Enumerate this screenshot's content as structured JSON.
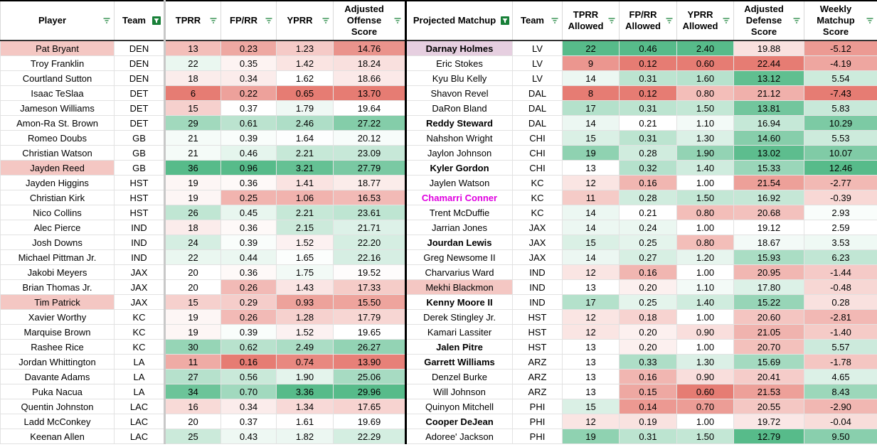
{
  "table": {
    "headers": [
      "Player",
      "Team",
      "TPRR",
      "FP/RR",
      "YPRR",
      "Adjusted Offense Score",
      "Projected Matchup",
      "Team",
      "TPRR Allowed",
      "FP/RR Allowed",
      "YPRR Allowed",
      "Adjusted Defense Score",
      "Weekly Matchup Score"
    ],
    "rows": [
      [
        "Pat Bryant",
        "DEN",
        "13",
        "0.23",
        "1.23",
        "14.76",
        "Darnay Holmes",
        "LV",
        "22",
        "0.46",
        "2.40",
        "19.88",
        "-5.12"
      ],
      [
        "Troy Franklin",
        "DEN",
        "22",
        "0.35",
        "1.42",
        "18.24",
        "Eric Stokes",
        "LV",
        "9",
        "0.12",
        "0.60",
        "22.44",
        "-4.19"
      ],
      [
        "Courtland Sutton",
        "DEN",
        "18",
        "0.34",
        "1.62",
        "18.66",
        "Kyu Blu Kelly",
        "LV",
        "14",
        "0.31",
        "1.60",
        "13.12",
        "5.54"
      ],
      [
        "Isaac TeSlaa",
        "DET",
        "6",
        "0.22",
        "0.65",
        "13.70",
        "Shavon Revel",
        "DAL",
        "8",
        "0.12",
        "0.80",
        "21.12",
        "-7.43"
      ],
      [
        "Jameson Williams",
        "DET",
        "15",
        "0.37",
        "1.79",
        "19.64",
        "DaRon Bland",
        "DAL",
        "17",
        "0.31",
        "1.50",
        "13.81",
        "5.83"
      ],
      [
        "Amon-Ra St. Brown",
        "DET",
        "29",
        "0.61",
        "2.46",
        "27.22",
        "Reddy Steward",
        "DAL",
        "14",
        "0.21",
        "1.10",
        "16.94",
        "10.29"
      ],
      [
        "Romeo Doubs",
        "GB",
        "21",
        "0.39",
        "1.64",
        "20.12",
        "Nahshon Wright",
        "CHI",
        "15",
        "0.31",
        "1.30",
        "14.60",
        "5.53"
      ],
      [
        "Christian Watson",
        "GB",
        "21",
        "0.46",
        "2.21",
        "23.09",
        "Jaylon Johnson",
        "CHI",
        "19",
        "0.28",
        "1.90",
        "13.02",
        "10.07"
      ],
      [
        "Jayden Reed",
        "GB",
        "36",
        "0.96",
        "3.21",
        "27.79",
        "Kyler Gordon",
        "CHI",
        "13",
        "0.32",
        "1.40",
        "15.33",
        "12.46"
      ],
      [
        "Jayden Higgins",
        "HST",
        "19",
        "0.36",
        "1.41",
        "18.77",
        "Jaylen Watson",
        "KC",
        "12",
        "0.16",
        "1.00",
        "21.54",
        "-2.77"
      ],
      [
        "Christian Kirk",
        "HST",
        "19",
        "0.25",
        "1.06",
        "16.53",
        "Chamarri Conner",
        "KC",
        "11",
        "0.28",
        "1.50",
        "16.92",
        "-0.39"
      ],
      [
        "Nico Collins",
        "HST",
        "26",
        "0.45",
        "2.21",
        "23.61",
        "Trent McDuffie",
        "KC",
        "14",
        "0.21",
        "0.80",
        "20.68",
        "2.93"
      ],
      [
        "Alec Pierce",
        "IND",
        "18",
        "0.36",
        "2.15",
        "21.71",
        "Jarrian Jones",
        "JAX",
        "14",
        "0.24",
        "1.00",
        "19.12",
        "2.59"
      ],
      [
        "Josh Downs",
        "IND",
        "24",
        "0.39",
        "1.52",
        "22.20",
        "Jourdan Lewis",
        "JAX",
        "15",
        "0.25",
        "0.80",
        "18.67",
        "3.53"
      ],
      [
        "Michael Pittman Jr.",
        "IND",
        "22",
        "0.44",
        "1.65",
        "22.16",
        "Greg Newsome II",
        "JAX",
        "14",
        "0.27",
        "1.20",
        "15.93",
        "6.23"
      ],
      [
        "Jakobi Meyers",
        "JAX",
        "20",
        "0.36",
        "1.75",
        "19.52",
        "Charvarius Ward",
        "IND",
        "12",
        "0.16",
        "1.00",
        "20.95",
        "-1.44"
      ],
      [
        "Brian Thomas Jr.",
        "JAX",
        "20",
        "0.26",
        "1.43",
        "17.33",
        "Mekhi Blackmon",
        "IND",
        "13",
        "0.20",
        "1.10",
        "17.80",
        "-0.48"
      ],
      [
        "Tim Patrick",
        "JAX",
        "15",
        "0.29",
        "0.93",
        "15.50",
        "Kenny Moore II",
        "IND",
        "17",
        "0.25",
        "1.40",
        "15.22",
        "0.28"
      ],
      [
        "Xavier Worthy",
        "KC",
        "19",
        "0.26",
        "1.28",
        "17.79",
        "Derek Stingley Jr.",
        "HST",
        "12",
        "0.18",
        "1.00",
        "20.60",
        "-2.81"
      ],
      [
        "Marquise Brown",
        "KC",
        "19",
        "0.39",
        "1.52",
        "19.65",
        "Kamari Lassiter",
        "HST",
        "12",
        "0.20",
        "0.90",
        "21.05",
        "-1.40"
      ],
      [
        "Rashee Rice",
        "KC",
        "30",
        "0.62",
        "2.49",
        "26.27",
        "Jalen Pitre",
        "HST",
        "13",
        "0.20",
        "1.00",
        "20.70",
        "5.57"
      ],
      [
        "Jordan Whittington",
        "LA",
        "11",
        "0.16",
        "0.74",
        "13.90",
        "Garrett Williams",
        "ARZ",
        "13",
        "0.33",
        "1.30",
        "15.69",
        "-1.78"
      ],
      [
        "Davante Adams",
        "LA",
        "27",
        "0.56",
        "1.90",
        "25.06",
        "Denzel Burke",
        "ARZ",
        "13",
        "0.16",
        "0.90",
        "20.41",
        "4.65"
      ],
      [
        "Puka Nacua",
        "LA",
        "34",
        "0.70",
        "3.36",
        "29.96",
        "Will Johnson",
        "ARZ",
        "13",
        "0.15",
        "0.60",
        "21.53",
        "8.43"
      ],
      [
        "Quentin Johnston",
        "LAC",
        "16",
        "0.34",
        "1.34",
        "17.65",
        "Quinyon Mitchell",
        "PHI",
        "15",
        "0.14",
        "0.70",
        "20.55",
        "-2.90"
      ],
      [
        "Ladd McConkey",
        "LAC",
        "20",
        "0.37",
        "1.61",
        "19.69",
        "Cooper DeJean",
        "PHI",
        "12",
        "0.19",
        "1.00",
        "19.72",
        "-0.04"
      ],
      [
        "Keenan Allen",
        "LAC",
        "25",
        "0.43",
        "1.82",
        "22.29",
        "Adoree' Jackson",
        "PHI",
        "19",
        "0.31",
        "1.50",
        "12.79",
        "9.50"
      ]
    ]
  }
}
